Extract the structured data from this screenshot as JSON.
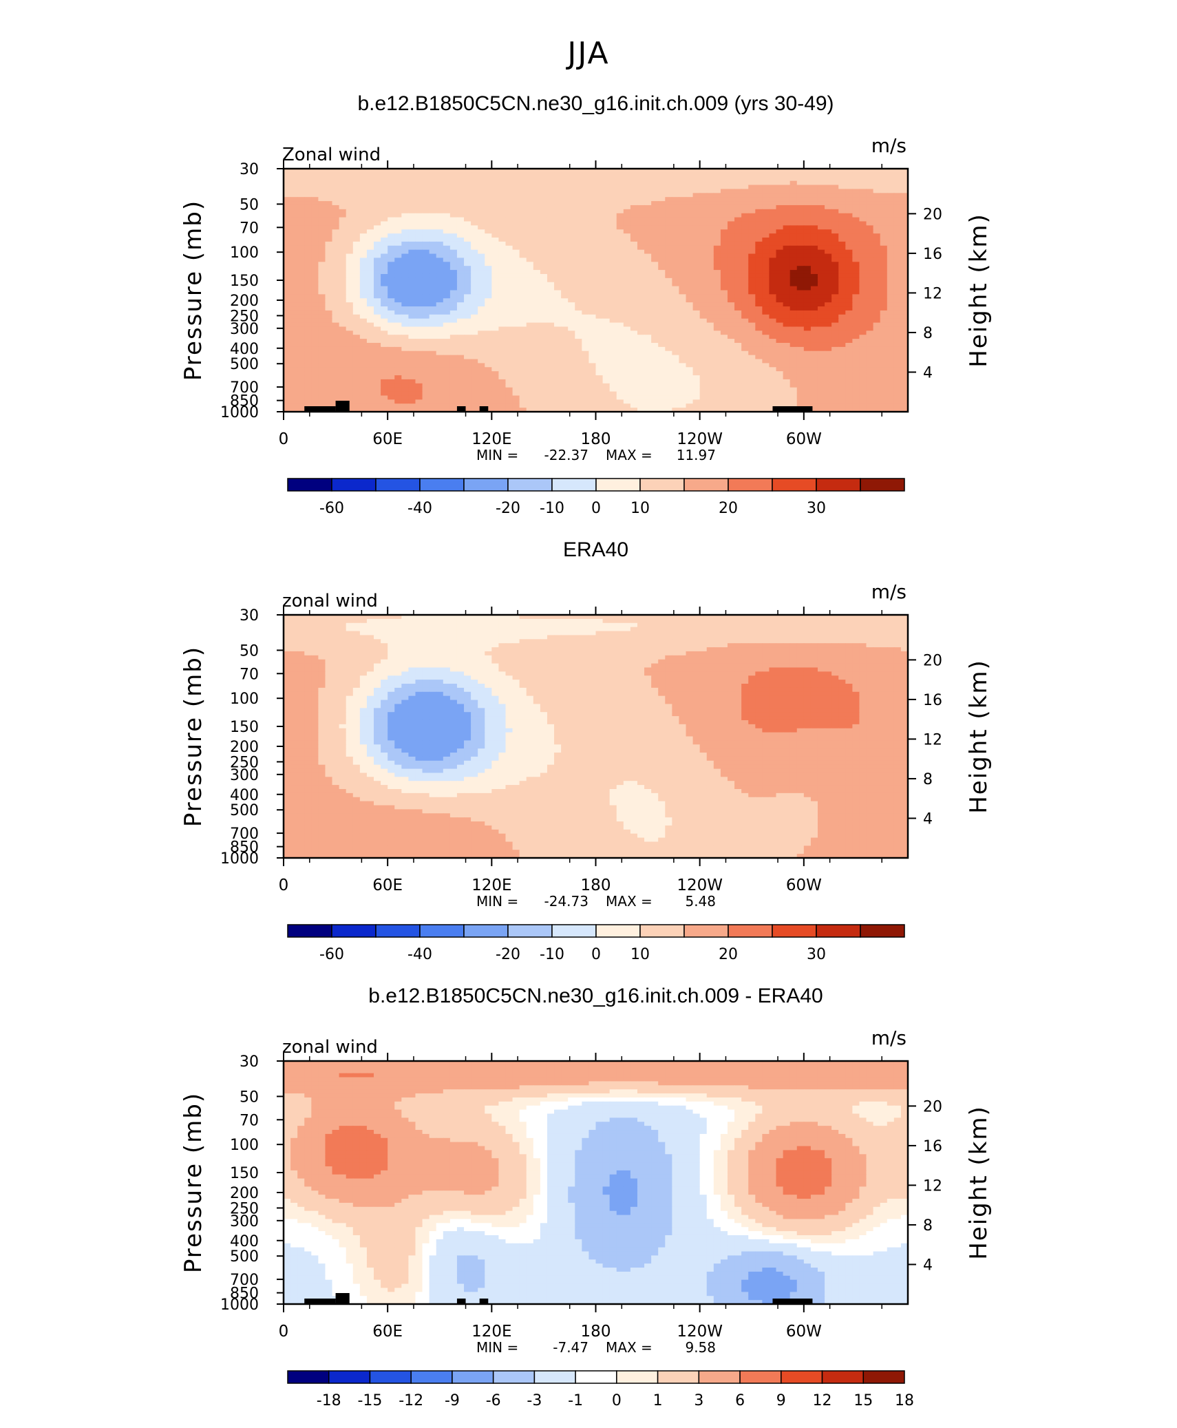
{
  "page": {
    "title": "JJA"
  },
  "palettes": {
    "full": [
      "#00007f",
      "#0b28cc",
      "#2454e3",
      "#4a7ef0",
      "#7aa4f4",
      "#abc7f8",
      "#d6e7fc",
      "#fff0df",
      "#fcd2b8",
      "#f7a98a",
      "#f27a57",
      "#e64b25",
      "#c52b10",
      "#8f1805"
    ],
    "diff": [
      "#00007f",
      "#0b28cc",
      "#2454e3",
      "#4a7ef0",
      "#7aa4f4",
      "#abc7f8",
      "#d6e7fc",
      "#ffffff",
      "#fff0df",
      "#fcd2b8",
      "#f7a98a",
      "#f27a57",
      "#e64b25",
      "#c52b10",
      "#8f1805"
    ]
  },
  "chart_data": [
    {
      "type": "heatmap",
      "title": "b.e12.B1850C5CN.ne30_g16.init.ch.009 (yrs 30-49)",
      "left_label": "Zonal wind",
      "right_label": "m/s",
      "ylabel": "Pressure (mb)",
      "y2label": "Height (km)",
      "x_ticks": [
        "0",
        "60E",
        "120E",
        "180",
        "120W",
        "60W"
      ],
      "y_ticks": [
        "30",
        "50",
        "70",
        "100",
        "150",
        "200",
        "250",
        "300",
        "400",
        "500",
        "700",
        "850",
        "1000"
      ],
      "y2_ticks": [
        "20",
        "16",
        "12",
        "8",
        "4"
      ],
      "stats": {
        "min_label": "MIN =",
        "min": "-22.37",
        "max_label": "MAX =",
        "max": "11.97"
      },
      "colorbar_labels": [
        "-60",
        "-40",
        "-20",
        "-10",
        "0",
        "10",
        "20",
        "30"
      ],
      "contour_levels": [
        -70,
        -60,
        -50,
        -40,
        -30,
        -20,
        -15,
        -10,
        -5,
        0,
        5,
        10,
        15,
        20,
        25,
        30,
        35
      ],
      "fields": {
        "stratosphere": -4,
        "background": 2,
        "blobs": [
          {
            "lon": 75,
            "p": 150,
            "w": 35,
            "h": 0.22,
            "a": -26
          },
          {
            "lon": 120,
            "p": 170,
            "w": 60,
            "h": 0.35,
            "a": -7
          },
          {
            "lon": 300,
            "p": 150,
            "w": 30,
            "h": 0.22,
            "a": 14
          },
          {
            "lon": 280,
            "p": 140,
            "w": 70,
            "h": 0.35,
            "a": 6
          },
          {
            "lon": 75,
            "p": 550,
            "w": 45,
            "h": 0.25,
            "a": 5
          },
          {
            "lon": 210,
            "p": 500,
            "w": 60,
            "h": 0.5,
            "a": -8
          },
          {
            "lon": 270,
            "p": 700,
            "w": 40,
            "h": 0.25,
            "a": -3
          }
        ]
      }
    },
    {
      "type": "heatmap",
      "title": "ERA40",
      "left_label": "zonal wind",
      "right_label": "m/s",
      "ylabel": "Pressure (mb)",
      "y2label": "Height (km)",
      "x_ticks": [
        "0",
        "60E",
        "120E",
        "180",
        "120W",
        "60W"
      ],
      "y_ticks": [
        "30",
        "50",
        "70",
        "100",
        "150",
        "200",
        "250",
        "300",
        "400",
        "500",
        "700",
        "850",
        "1000"
      ],
      "y2_ticks": [
        "20",
        "16",
        "12",
        "8",
        "4"
      ],
      "stats": {
        "min_label": "MIN =",
        "min": "-24.73",
        "max_label": "MAX =",
        "max": "5.48"
      },
      "colorbar_labels": [
        "-60",
        "-40",
        "-20",
        "-10",
        "0",
        "10",
        "20",
        "30"
      ],
      "contour_levels": [
        -70,
        -60,
        -50,
        -40,
        -30,
        -20,
        -15,
        -10,
        -5,
        0,
        5,
        10,
        15,
        20,
        25,
        30,
        35
      ],
      "fields": {
        "stratosphere": -6,
        "background": 1.5,
        "blobs": [
          {
            "lon": 80,
            "p": 150,
            "w": 38,
            "h": 0.24,
            "a": -25
          },
          {
            "lon": 115,
            "p": 170,
            "w": 60,
            "h": 0.38,
            "a": -7
          },
          {
            "lon": 290,
            "p": 140,
            "w": 60,
            "h": 0.35,
            "a": 7
          },
          {
            "lon": 80,
            "p": 650,
            "w": 45,
            "h": 0.22,
            "a": 4
          },
          {
            "lon": 215,
            "p": 500,
            "w": 60,
            "h": 0.5,
            "a": -7
          },
          {
            "lon": 300,
            "p": 300,
            "w": 30,
            "h": 0.3,
            "a": -4
          }
        ]
      }
    },
    {
      "type": "heatmap",
      "title": "b.e12.B1850C5CN.ne30_g16.init.ch.009 - ERA40",
      "left_label": "zonal wind",
      "right_label": "m/s",
      "ylabel": "Pressure (mb)",
      "y2label": "Height (km)",
      "x_ticks": [
        "0",
        "60E",
        "120E",
        "180",
        "120W",
        "60W"
      ],
      "y_ticks": [
        "30",
        "50",
        "70",
        "100",
        "150",
        "200",
        "250",
        "300",
        "400",
        "500",
        "700",
        "850",
        "1000"
      ],
      "y2_ticks": [
        "20",
        "16",
        "12",
        "8",
        "4"
      ],
      "stats": {
        "min_label": "MIN =",
        "min": "-7.47",
        "max_label": "MAX =",
        "max": "9.58"
      },
      "colorbar_labels": [
        "-18",
        "-15",
        "-12",
        "-9",
        "-6",
        "-3",
        "-1",
        "0",
        "1",
        "3",
        "6",
        "9",
        "12",
        "15",
        "18"
      ],
      "contour_levels": [
        -21,
        -18,
        -15,
        -12,
        -9,
        -6,
        -3,
        -1,
        0,
        1,
        3,
        6,
        9,
        12,
        15,
        18,
        21
      ],
      "fields": {
        "stratosphere": 6,
        "background": -1.5,
        "blobs": [
          {
            "lon": 40,
            "p": 110,
            "w": 40,
            "h": 0.25,
            "a": 9
          },
          {
            "lon": 110,
            "p": 180,
            "w": 35,
            "h": 0.3,
            "a": 6
          },
          {
            "lon": 300,
            "p": 150,
            "w": 40,
            "h": 0.25,
            "a": 9
          },
          {
            "lon": 195,
            "p": 200,
            "w": 30,
            "h": 0.3,
            "a": -5
          },
          {
            "lon": 70,
            "p": 550,
            "w": 30,
            "h": 0.25,
            "a": 4
          },
          {
            "lon": 280,
            "p": 750,
            "w": 30,
            "h": 0.15,
            "a": -6
          },
          {
            "lon": 100,
            "p": 450,
            "w": 30,
            "h": 0.25,
            "a": -5
          }
        ]
      }
    }
  ]
}
